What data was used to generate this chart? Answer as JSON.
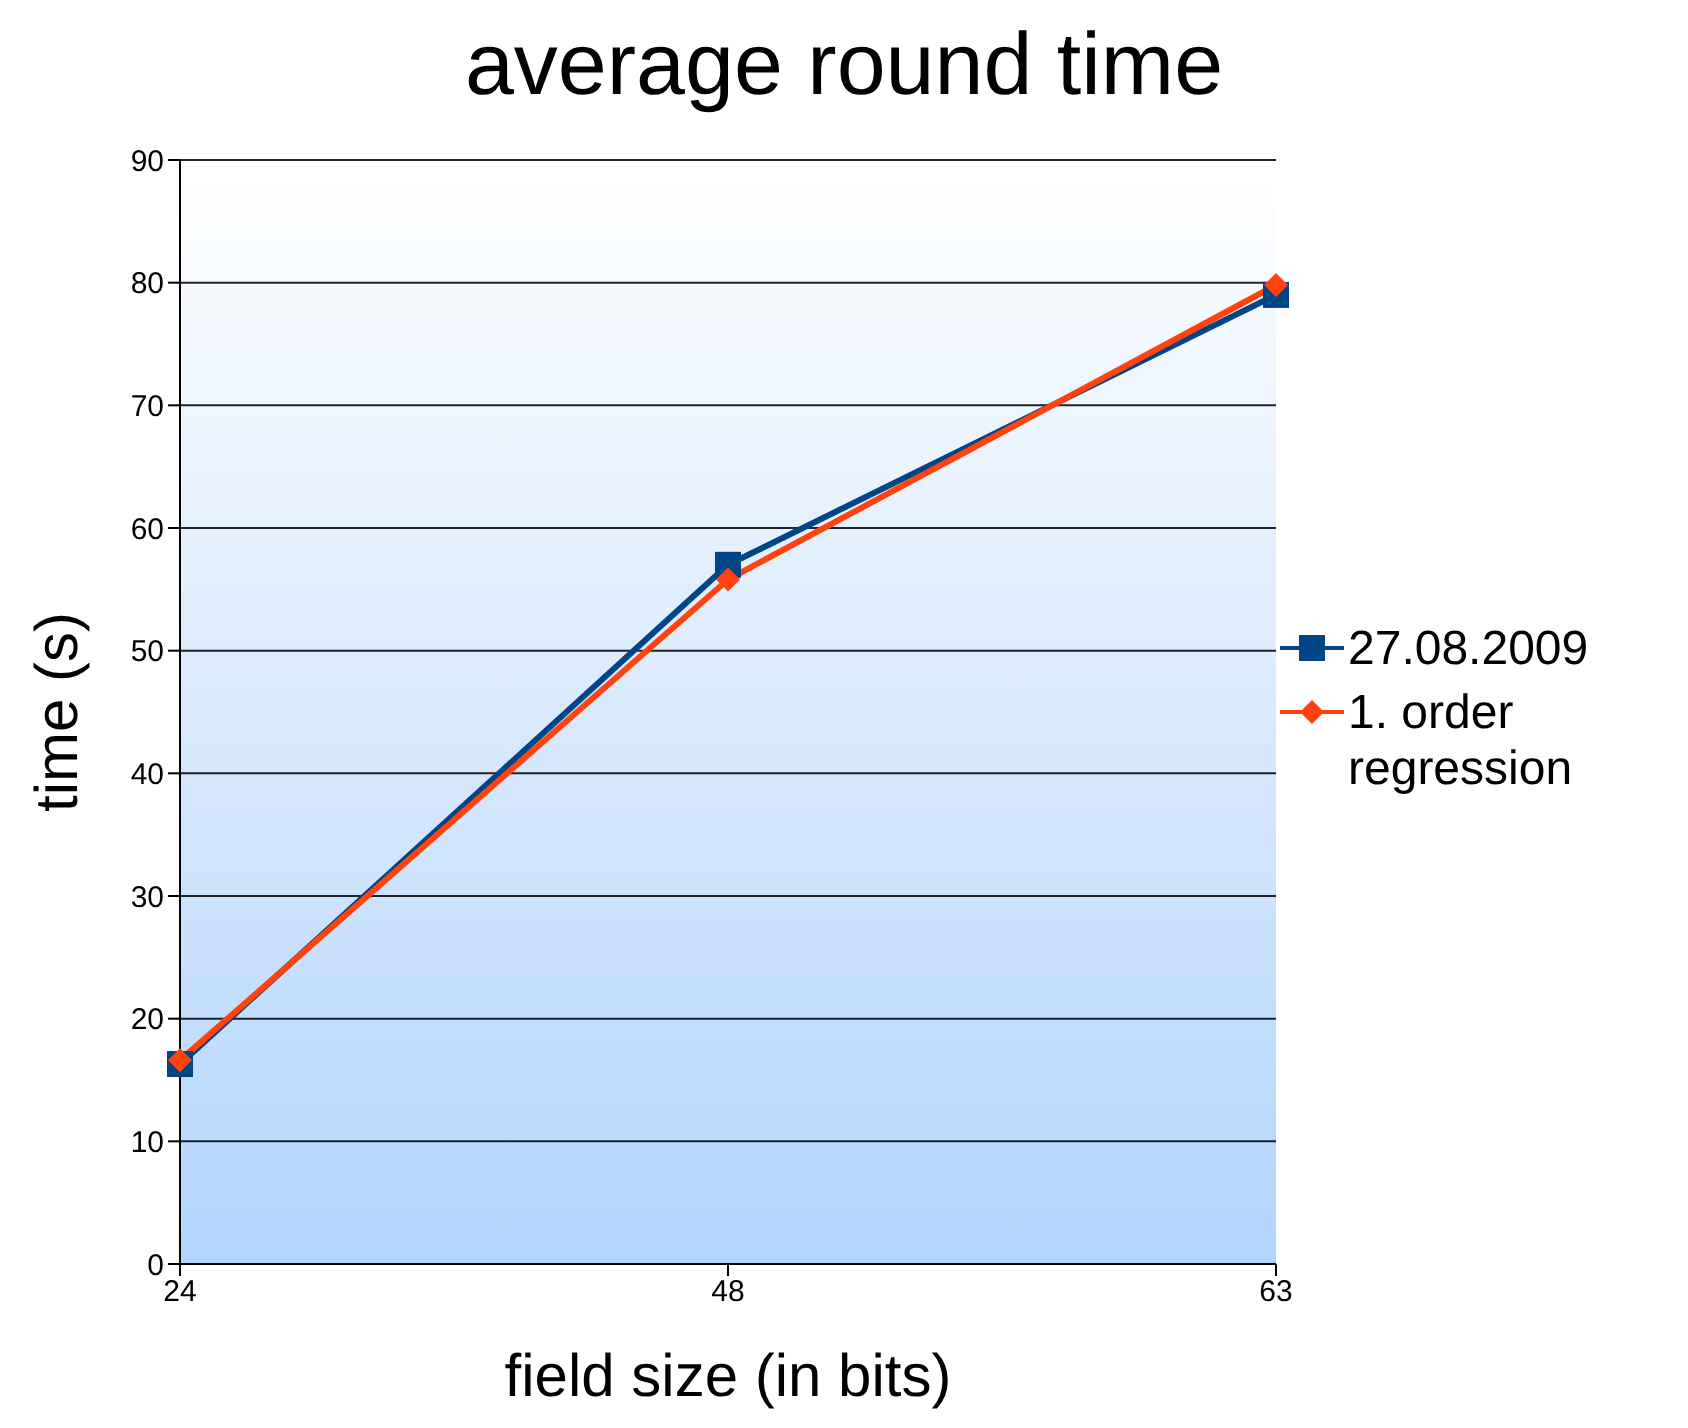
{
  "chart_data": {
    "type": "line",
    "title": "average round time",
    "xlabel": "field size (in bits)",
    "ylabel": "time (s)",
    "categories": [
      "24",
      "48",
      "63"
    ],
    "series": [
      {
        "name": "27.08.2009",
        "color": "#004586",
        "values": [
          16.3,
          57,
          79
        ],
        "marker": "square"
      },
      {
        "name": "1. order regression",
        "color": "#ff420e",
        "values": [
          16.6,
          55.8,
          79.8
        ],
        "marker": "diamond"
      }
    ],
    "ylim": [
      0,
      90
    ],
    "yticks": [
      0,
      10,
      20,
      30,
      40,
      50,
      60,
      70,
      80,
      90
    ],
    "grid": "y",
    "legend": "right",
    "line_style": "solid"
  }
}
